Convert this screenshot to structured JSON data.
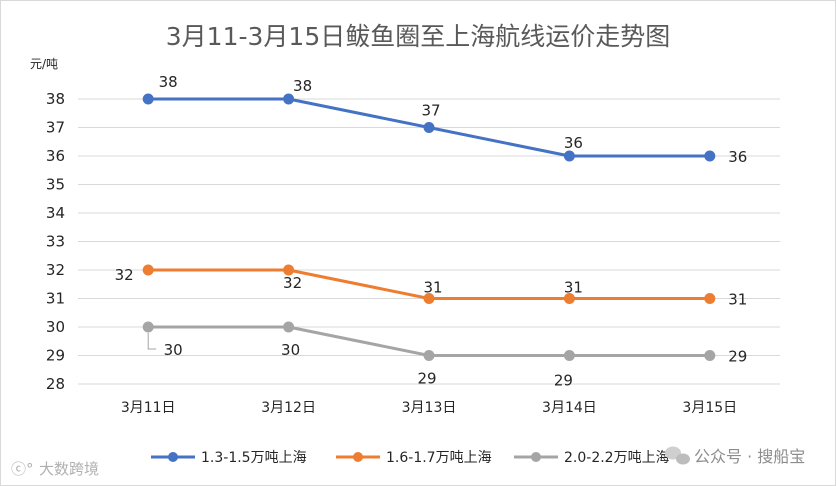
{
  "chart_data": {
    "type": "line",
    "title": "3月11-3月15日鲅鱼圈至上海航线运价走势图",
    "unit_label": "元/吨",
    "categories": [
      "3月11日",
      "3月12日",
      "3月13日",
      "3月14日",
      "3月15日"
    ],
    "ylim": [
      28,
      38
    ],
    "yticks": [
      38,
      37,
      36,
      35,
      34,
      33,
      32,
      31,
      30,
      29,
      28
    ],
    "grid": true,
    "legend_position": "bottom",
    "series": [
      {
        "name": "1.3-1.5万吨上海",
        "color": "#4472c4",
        "values": [
          38,
          38,
          37,
          36,
          36
        ]
      },
      {
        "name": "1.6-1.7万吨上海",
        "color": "#ed7d31",
        "values": [
          32,
          32,
          31,
          31,
          31
        ]
      },
      {
        "name": "2.0-2.2万吨上海",
        "color": "#a5a5a5",
        "values": [
          30,
          30,
          29,
          29,
          29
        ]
      }
    ]
  },
  "watermarks": {
    "bottom_left": "大数跨境",
    "bottom_right": "公众号 · 搜船宝"
  }
}
